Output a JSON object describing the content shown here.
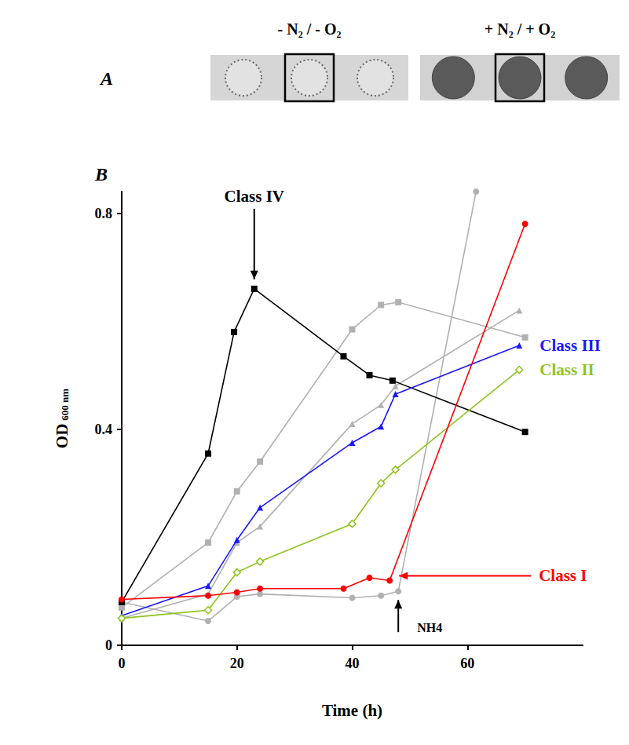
{
  "panel_a": {
    "label": "A",
    "conditions": [
      "- N₂ / - O₂",
      "+ N₂ / + O₂"
    ]
  },
  "chart_data": {
    "type": "line",
    "panel_label": "B",
    "x_label": "Time (h)",
    "y_label": "OD 600 nm",
    "xlim": [
      0,
      80
    ],
    "xticks": [
      0,
      20,
      40,
      60
    ],
    "ylim": [
      0,
      0.84
    ],
    "yticks": [
      0,
      0.4,
      0.8
    ],
    "grid": false,
    "series": [
      {
        "name": "Class IV",
        "color": "#000000",
        "marker": "square",
        "x": [
          0,
          15,
          19.5,
          23,
          38.5,
          43,
          47,
          70
        ],
        "values": [
          0.08,
          0.355,
          0.58,
          0.66,
          0.535,
          0.5,
          0.49,
          0.395
        ]
      },
      {
        "color": "#b0b0b0",
        "marker": "square",
        "x": [
          0,
          15,
          20,
          24,
          40,
          45,
          48,
          70
        ],
        "values": [
          0.07,
          0.19,
          0.285,
          0.34,
          0.585,
          0.63,
          0.635,
          0.57
        ]
      },
      {
        "name": "Class III",
        "color": "#1a1aff",
        "marker": "triangle",
        "x": [
          0,
          15,
          20,
          24,
          40,
          45,
          47.5,
          69
        ],
        "values": [
          0.055,
          0.11,
          0.195,
          0.255,
          0.375,
          0.405,
          0.465,
          0.555
        ]
      },
      {
        "color": "#b0b0b0",
        "marker": "triangle",
        "x": [
          0,
          15,
          20,
          24,
          40,
          45,
          47.5,
          69
        ],
        "values": [
          0.05,
          0.095,
          0.19,
          0.22,
          0.41,
          0.445,
          0.48,
          0.62
        ]
      },
      {
        "name": "Class II",
        "color": "#8fc31f",
        "marker": "open-diamond",
        "x": [
          0,
          15,
          20,
          24,
          40,
          45,
          47.5,
          69
        ],
        "values": [
          0.05,
          0.065,
          0.135,
          0.155,
          0.225,
          0.3,
          0.325,
          0.51
        ]
      },
      {
        "name": "Class I",
        "color": "#ff0000",
        "marker": "circle",
        "x": [
          0,
          15,
          20,
          24,
          38.5,
          43,
          46.5,
          70
        ],
        "values": [
          0.085,
          0.092,
          0.098,
          0.105,
          0.105,
          0.125,
          0.12,
          0.78
        ]
      },
      {
        "color": "#b0b0b0",
        "marker": "circle",
        "annotation": "NH4",
        "x": [
          0,
          15,
          20,
          24,
          40,
          45,
          48,
          61.5
        ],
        "values": [
          0.08,
          0.045,
          0.09,
          0.095,
          0.088,
          0.092,
          0.1,
          0.84
        ]
      }
    ]
  }
}
